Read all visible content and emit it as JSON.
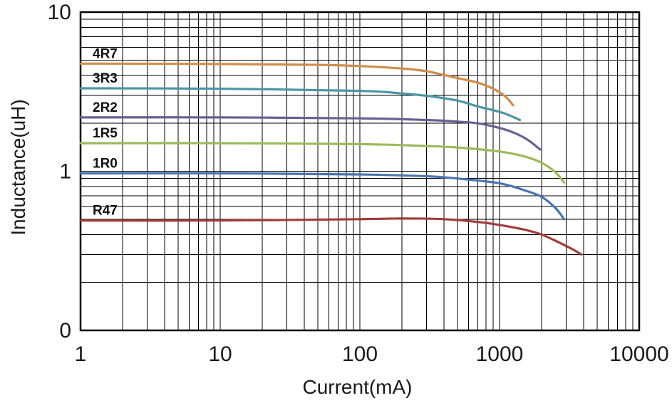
{
  "chart_data": {
    "type": "line",
    "title": "",
    "xlabel": "Current(mA)",
    "ylabel": "Inductance(uH)",
    "x_scale": "log",
    "y_scale": "log",
    "xlim": [
      1,
      10000
    ],
    "ylim": [
      0.1,
      10
    ],
    "grid": true,
    "legend_position": "inline-labels-left",
    "x_ticks": [
      {
        "value": 1,
        "label": "1"
      },
      {
        "value": 10,
        "label": "10"
      },
      {
        "value": 100,
        "label": "100"
      },
      {
        "value": 1000,
        "label": "1000"
      },
      {
        "value": 10000,
        "label": "10000"
      }
    ],
    "y_ticks": [
      {
        "value": 10,
        "label": "10"
      },
      {
        "value": 1,
        "label": "1"
      },
      {
        "value": 0.1,
        "label": "0"
      }
    ],
    "series": [
      {
        "name": "4R7",
        "color": "#cf8d49",
        "points": [
          [
            1,
            4.75
          ],
          [
            10,
            4.72
          ],
          [
            50,
            4.66
          ],
          [
            100,
            4.58
          ],
          [
            200,
            4.42
          ],
          [
            300,
            4.25
          ],
          [
            500,
            3.85
          ],
          [
            700,
            3.6
          ],
          [
            900,
            3.3
          ],
          [
            1100,
            2.95
          ],
          [
            1250,
            2.6
          ]
        ]
      },
      {
        "name": "3R3",
        "color": "#4b96a5",
        "points": [
          [
            1,
            3.32
          ],
          [
            10,
            3.3
          ],
          [
            100,
            3.2
          ],
          [
            200,
            3.08
          ],
          [
            300,
            2.98
          ],
          [
            500,
            2.78
          ],
          [
            700,
            2.55
          ],
          [
            900,
            2.42
          ],
          [
            1100,
            2.3
          ],
          [
            1400,
            2.1
          ]
        ]
      },
      {
        "name": "2R2",
        "color": "#6a5f94",
        "points": [
          [
            1,
            2.18
          ],
          [
            10,
            2.18
          ],
          [
            100,
            2.15
          ],
          [
            300,
            2.1
          ],
          [
            500,
            2.05
          ],
          [
            700,
            2.0
          ],
          [
            1000,
            1.87
          ],
          [
            1300,
            1.73
          ],
          [
            1600,
            1.57
          ],
          [
            1950,
            1.37
          ]
        ]
      },
      {
        "name": "1R5",
        "color": "#9abb59",
        "points": [
          [
            1,
            1.5
          ],
          [
            10,
            1.5
          ],
          [
            100,
            1.48
          ],
          [
            300,
            1.44
          ],
          [
            500,
            1.41
          ],
          [
            1000,
            1.33
          ],
          [
            1500,
            1.24
          ],
          [
            2000,
            1.13
          ],
          [
            2500,
            0.99
          ],
          [
            2900,
            0.85
          ]
        ]
      },
      {
        "name": "1R0",
        "color": "#4a74b0",
        "points": [
          [
            1,
            0.97
          ],
          [
            10,
            0.97
          ],
          [
            100,
            0.955
          ],
          [
            300,
            0.93
          ],
          [
            500,
            0.9
          ],
          [
            1000,
            0.84
          ],
          [
            1500,
            0.76
          ],
          [
            2000,
            0.69
          ],
          [
            2500,
            0.59
          ],
          [
            2900,
            0.5
          ]
        ]
      },
      {
        "name": "R47",
        "color": "#a13c3c",
        "points": [
          [
            1,
            0.49
          ],
          [
            10,
            0.49
          ],
          [
            100,
            0.5
          ],
          [
            200,
            0.505
          ],
          [
            400,
            0.5
          ],
          [
            700,
            0.48
          ],
          [
            1000,
            0.46
          ],
          [
            1500,
            0.43
          ],
          [
            2000,
            0.4
          ],
          [
            2700,
            0.355
          ],
          [
            3300,
            0.325
          ],
          [
            3850,
            0.3
          ]
        ]
      }
    ]
  }
}
